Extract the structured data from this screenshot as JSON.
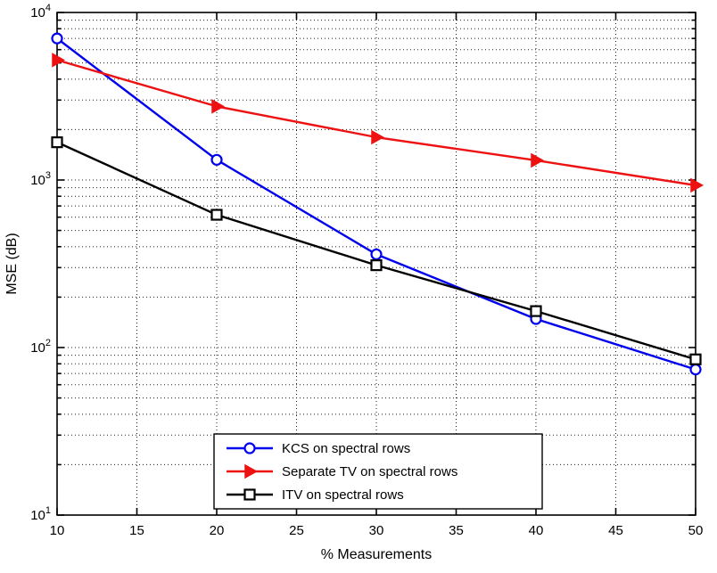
{
  "chart_data": {
    "type": "line",
    "x": [
      10,
      20,
      30,
      40,
      50
    ],
    "series": [
      {
        "name": "KCS on spectral rows",
        "color": "#0000ee",
        "marker": "circle",
        "values": [
          7000,
          1320,
          360,
          148,
          74
        ]
      },
      {
        "name": "Separate TV on spectral rows",
        "color": "#ee1111",
        "marker": "triangle-right",
        "values": [
          5200,
          2750,
          1800,
          1310,
          930
        ]
      },
      {
        "name": "ITV on spectral rows",
        "color": "#000000",
        "marker": "square",
        "values": [
          1680,
          620,
          310,
          165,
          85
        ]
      }
    ],
    "title": "",
    "xlabel": "% Measurements",
    "ylabel": "MSE (dB)",
    "xlim": [
      10,
      50
    ],
    "ylim": [
      10,
      10000
    ],
    "yscale": "log",
    "xticks": [
      10,
      15,
      20,
      25,
      30,
      35,
      40,
      45,
      50
    ],
    "yticks": [
      10,
      100,
      1000,
      10000
    ],
    "ytick_labels": [
      "10^1",
      "10^2",
      "10^3",
      "10^4"
    ],
    "grid": true,
    "minor_grid": true,
    "legend_position": "bottom-center"
  }
}
